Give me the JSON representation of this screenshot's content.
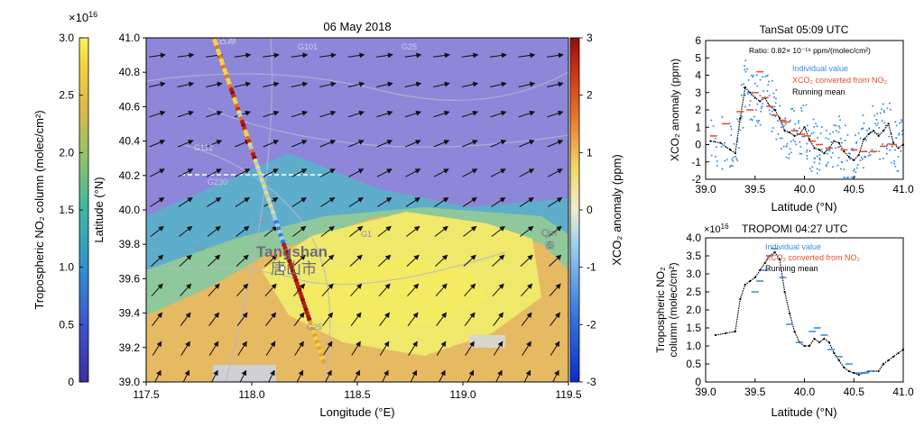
{
  "no2_colorbar": {
    "label": "Tropospheric NO₂ column (molec/cm²)",
    "multiplier": "×10",
    "multiplier_exp": "16",
    "ticks": [
      "0",
      "0.5",
      "1.0",
      "1.5",
      "2.0",
      "2.5",
      "3.0"
    ],
    "range": [
      0,
      3.0
    ]
  },
  "xco2_colorbar": {
    "label": "XCO₂ anomaly (ppm)",
    "ticks": [
      "-3",
      "-2",
      "-1",
      "0",
      "1",
      "2",
      "3"
    ],
    "range": [
      -3,
      3
    ]
  },
  "map": {
    "title": "06 May 2018",
    "xlabel": "Longitude (°E)",
    "ylabel": "Latitude (°N)",
    "xticks": [
      "117.5",
      "118.0",
      "118.5",
      "119.0",
      "119.5"
    ],
    "yticks": [
      "39.0",
      "39.2",
      "39.4",
      "39.6",
      "39.8",
      "40.0",
      "40.2",
      "40.4",
      "40.6",
      "40.8",
      "41.0"
    ],
    "xlim": [
      117.5,
      119.5
    ],
    "ylim": [
      39.0,
      41.0
    ],
    "city_en": "Tangshan",
    "city_zh": "唐山市",
    "road_labels": [
      "G101",
      "G25",
      "G112",
      "G230",
      "G25",
      "G1",
      "G1",
      "G25"
    ],
    "place_tl": "沽源",
    "place_cl": "Qin",
    "place_cl_zh": "秦",
    "colors": {
      "background_blue": "#8e87d9",
      "yellow": "#efea6a",
      "orange": "#e8b25e",
      "teal": "#62b5c8",
      "track_red": "#b21e14",
      "white_line": "#ffffff"
    }
  },
  "chart_data": [
    {
      "type": "scatter",
      "title": "TanSat 05:09 UTC",
      "xlabel": "Latitude (°N)",
      "ylabel": "XCO₂ anomaly (ppm)",
      "xlim": [
        39.0,
        41.0
      ],
      "ylim": [
        -2,
        6
      ],
      "xticks": [
        "39.0",
        "39.5",
        "40.0",
        "40.5",
        "41.0"
      ],
      "yticks": [
        "-2",
        "-1",
        "0",
        "1",
        "2",
        "3",
        "4",
        "5",
        "6"
      ],
      "annotation": "Ratio: 0.82× 10⁻¹⁶ ppm/(molec/cm²)",
      "legend": [
        "Individual value",
        "XCO₂ converted from NO₂",
        "Running mean"
      ],
      "legend_colors": [
        "#3d8ee0",
        "#e0522c",
        "#000000"
      ],
      "running_mean": {
        "x": [
          39.05,
          39.15,
          39.25,
          39.3,
          39.35,
          39.4,
          39.45,
          39.5,
          39.55,
          39.6,
          39.65,
          39.7,
          39.75,
          39.8,
          39.85,
          39.9,
          39.95,
          40.0,
          40.05,
          40.1,
          40.15,
          40.2,
          40.25,
          40.3,
          40.35,
          40.4,
          40.45,
          40.5,
          40.55,
          40.6,
          40.65,
          40.7,
          40.75,
          40.8,
          40.85,
          40.9,
          40.95,
          41.0
        ],
        "y": [
          0.2,
          0.1,
          -0.3,
          -0.5,
          1.5,
          3.3,
          3.0,
          2.7,
          2.5,
          2.7,
          2.2,
          2.0,
          1.5,
          0.8,
          0.7,
          0.5,
          0.6,
          1.0,
          0.3,
          -0.2,
          -0.3,
          -0.5,
          -0.2,
          0.2,
          0.1,
          -0.4,
          -0.7,
          -0.9,
          -0.6,
          0.3,
          0.6,
          0.8,
          0.5,
          0.8,
          1.2,
          0.1,
          -0.2,
          0.0
        ]
      },
      "converted": {
        "x": [
          39.08,
          39.2,
          39.35,
          39.45,
          39.5,
          39.55,
          39.6,
          39.65,
          39.7,
          39.78,
          39.82,
          39.9,
          39.97,
          40.03,
          40.08,
          40.15,
          40.25,
          40.4,
          40.5,
          40.6,
          40.7,
          40.8,
          40.9
        ],
        "y": [
          0.5,
          1.2,
          1.9,
          2.0,
          3.0,
          4.2,
          2.7,
          2.2,
          1.7,
          1.4,
          1.3,
          0.8,
          0.6,
          0.5,
          0.2,
          0.0,
          -0.2,
          -0.3,
          -0.3,
          -0.4,
          -0.4,
          -0.1,
          0.0
        ]
      }
    },
    {
      "type": "scatter",
      "title": "TROPOMI 04:27 UTC",
      "multiplier": "×10",
      "multiplier_exp": "16",
      "xlabel": "Latitude (°N)",
      "ylabel_line1": "Tropospheric NO₂",
      "ylabel_line2": "column (molec/cm²)",
      "xlim": [
        39.0,
        41.0
      ],
      "ylim": [
        0,
        4.0
      ],
      "xticks": [
        "39.0",
        "39.5",
        "40.0",
        "40.5",
        "41.0"
      ],
      "yticks": [
        "0",
        "0.5",
        "1.0",
        "1.5",
        "2.0",
        "2.5",
        "3.0",
        "3.5",
        "4.0"
      ],
      "legend": [
        "Individual value",
        "XCO₂ converted from NO₂",
        "Running mean"
      ],
      "legend_colors": [
        "#3d8ee0",
        "#e0522c",
        "#000000"
      ],
      "running_mean": {
        "x": [
          39.1,
          39.2,
          39.3,
          39.35,
          39.4,
          39.45,
          39.5,
          39.55,
          39.6,
          39.65,
          39.7,
          39.75,
          39.8,
          39.85,
          39.9,
          39.95,
          40.0,
          40.05,
          40.1,
          40.15,
          40.2,
          40.25,
          40.3,
          40.35,
          40.4,
          40.45,
          40.5,
          40.55,
          40.6,
          40.65,
          40.7,
          40.75,
          40.8,
          40.85,
          40.9,
          40.95,
          41.0
        ],
        "y": [
          1.3,
          1.35,
          1.4,
          2.3,
          2.7,
          2.8,
          2.9,
          3.1,
          3.3,
          3.5,
          3.6,
          3.4,
          2.5,
          1.9,
          1.4,
          1.1,
          1.0,
          1.0,
          1.2,
          1.1,
          1.2,
          1.1,
          0.8,
          0.6,
          0.4,
          0.3,
          0.25,
          0.2,
          0.25,
          0.3,
          0.3,
          0.3,
          0.5,
          0.6,
          0.7,
          0.8,
          0.9
        ]
      },
      "individual": {
        "x": [
          39.5,
          39.55,
          39.6,
          39.65,
          39.7,
          39.78,
          39.85,
          39.95,
          40.08,
          40.13,
          40.2,
          40.27,
          40.35,
          40.45,
          40.55,
          40.62,
          40.68
        ],
        "y": [
          2.5,
          2.8,
          3.1,
          3.5,
          3.7,
          2.9,
          1.6,
          1.1,
          1.4,
          1.5,
          1.3,
          0.9,
          0.7,
          0.5,
          0.25,
          0.25,
          0.3
        ]
      }
    }
  ]
}
